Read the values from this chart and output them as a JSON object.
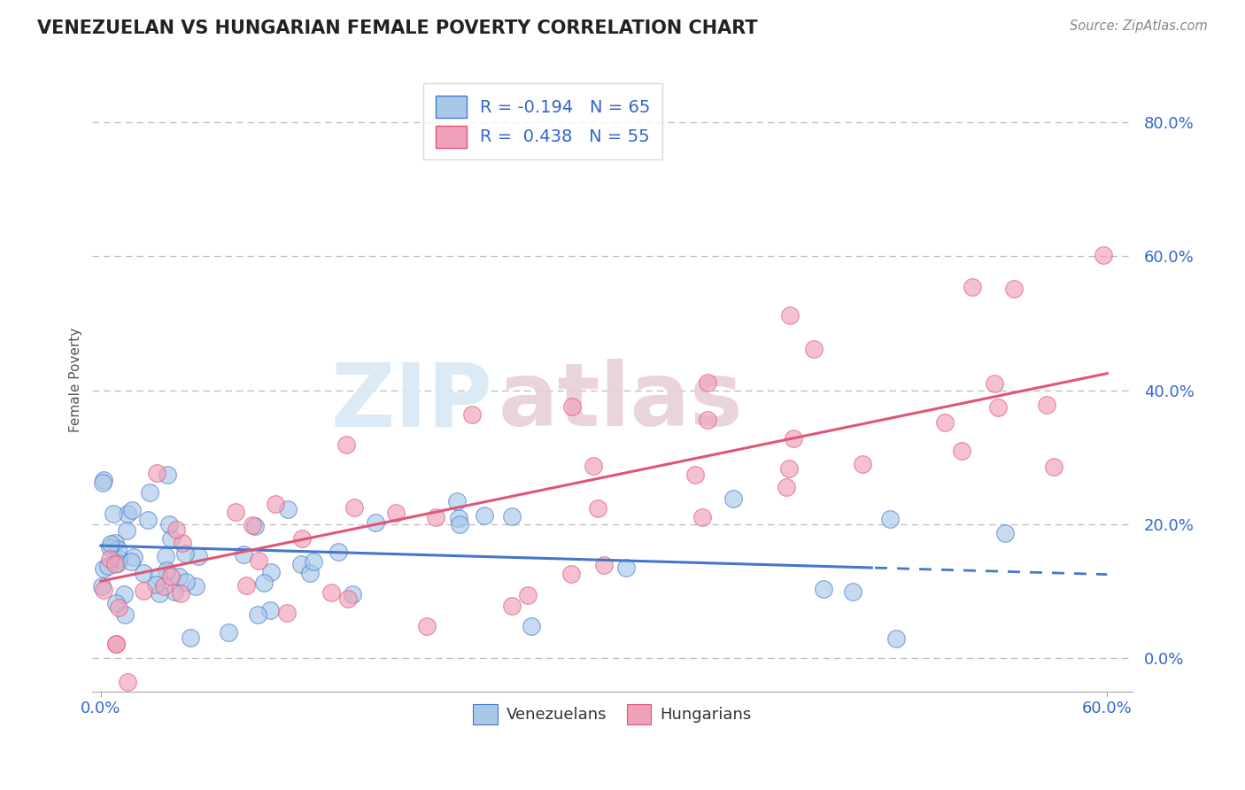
{
  "title": "VENEZUELAN VS HUNGARIAN FEMALE POVERTY CORRELATION CHART",
  "source": "Source: ZipAtlas.com",
  "ylabel": "Female Poverty",
  "xlim": [
    -0.005,
    0.615
  ],
  "ylim": [
    -0.05,
    0.88
  ],
  "xtick_labels": [
    "0.0%",
    "60.0%"
  ],
  "ytick_labels": [
    "0.0%",
    "20.0%",
    "40.0%",
    "60.0%",
    "80.0%"
  ],
  "ytick_values": [
    0.0,
    0.2,
    0.4,
    0.6,
    0.8
  ],
  "xtick_values": [
    0.0,
    0.6
  ],
  "venezuelan_color": "#a8c8e8",
  "hungarian_color": "#f0a0b8",
  "venezuelan_line_color": "#4477cc",
  "hungarian_line_color": "#e05575",
  "R_venezuelan": -0.194,
  "N_venezuelan": 65,
  "R_hungarian": 0.438,
  "N_hungarian": 55,
  "title_color": "#222222",
  "axis_label_color": "#555555",
  "tick_color": "#3366cc",
  "grid_color": "#bbbbbb",
  "background_color": "#ffffff",
  "watermark_color": "#d8e8f4",
  "watermark_color2": "#e8d0d8",
  "ven_trend_start_y": 0.168,
  "ven_trend_end_y": 0.125,
  "hun_trend_start_y": 0.115,
  "hun_trend_end_y": 0.425
}
